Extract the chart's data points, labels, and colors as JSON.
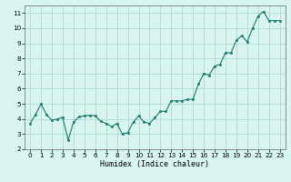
{
  "x_full": [
    0,
    0.5,
    1,
    1.5,
    2,
    2.5,
    3,
    3.5,
    4,
    4.5,
    5,
    5.5,
    6,
    6.5,
    7,
    7.5,
    8,
    8.5,
    9,
    9.5,
    10,
    10.5,
    11,
    11.5,
    12,
    12.5,
    13,
    13.5,
    14,
    14.5,
    15,
    15.5,
    16,
    16.5,
    17,
    17.5,
    18,
    18.5,
    19,
    19.5,
    20,
    20.5,
    21,
    21.5,
    22,
    22.5,
    23
  ],
  "y_full": [
    3.7,
    4.3,
    5.0,
    4.3,
    3.9,
    4.0,
    4.1,
    2.6,
    3.8,
    4.15,
    4.2,
    4.25,
    4.2,
    3.85,
    3.7,
    3.5,
    3.7,
    3.0,
    3.1,
    3.8,
    4.2,
    3.8,
    3.7,
    4.1,
    4.5,
    4.5,
    5.2,
    5.2,
    5.2,
    5.3,
    5.3,
    6.3,
    7.0,
    6.9,
    7.5,
    7.6,
    8.4,
    8.35,
    9.2,
    9.5,
    9.1,
    10.0,
    10.8,
    11.1,
    10.5,
    10.5,
    10.5
  ],
  "line_color": "#1a7a6e",
  "marker_color": "#1a7a6e",
  "bg_color": "#d8f5f0",
  "grid_color": "#b0d8d0",
  "xlabel": "Humidex (Indice chaleur)",
  "ylim": [
    2,
    11.5
  ],
  "xlim": [
    -0.5,
    23.5
  ],
  "yticks": [
    2,
    3,
    4,
    5,
    6,
    7,
    8,
    9,
    10,
    11
  ],
  "xticks": [
    0,
    1,
    2,
    3,
    4,
    5,
    6,
    7,
    8,
    9,
    10,
    11,
    12,
    13,
    14,
    15,
    16,
    17,
    18,
    19,
    20,
    21,
    22,
    23
  ],
  "axis_fontsize": 6.0,
  "tick_fontsize": 5.2
}
